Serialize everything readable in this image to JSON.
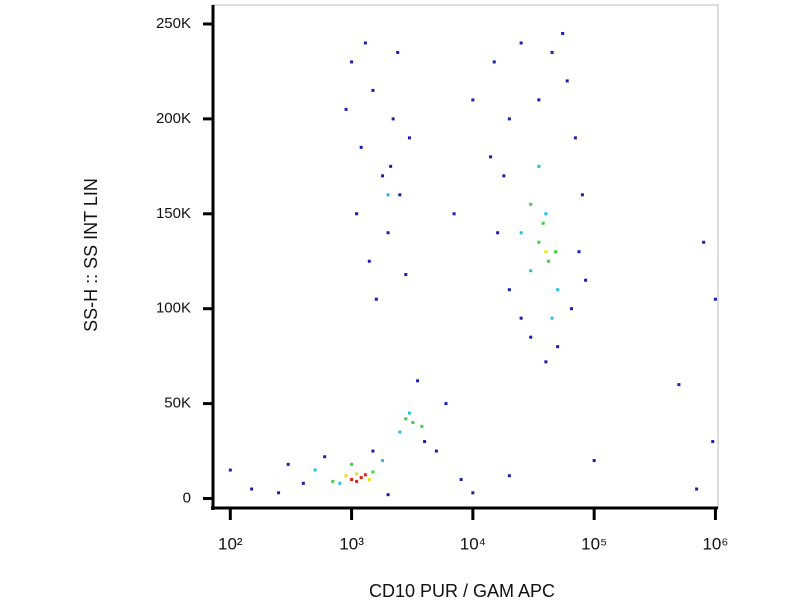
{
  "chart_data": {
    "type": "scatter",
    "x_label": "CD10 PUR / GAM APC",
    "y_label": "SS-H :: SS INT LIN",
    "xscale": "log",
    "xlim": [
      72,
      1050000
    ],
    "ylim": [
      -5000,
      260000
    ],
    "xticks": [
      {
        "value": 100,
        "label": "10²"
      },
      {
        "value": 1000,
        "label": "10³"
      },
      {
        "value": 10000,
        "label": "10⁴"
      },
      {
        "value": 100000,
        "label": "10⁵"
      },
      {
        "value": 1000000,
        "label": "10⁶"
      }
    ],
    "yticks": [
      0,
      {
        "value": 50000,
        "label": "50K"
      },
      {
        "value": 100000,
        "label": "100K"
      },
      {
        "value": 150000,
        "label": "150K"
      },
      {
        "value": 200000,
        "label": "200K"
      },
      {
        "value": 250000,
        "label": "250K"
      }
    ],
    "series": [
      {
        "color": "#1c1cb0",
        "x": [
          1000,
          1500,
          2200,
          1200,
          1800,
          2500,
          1100,
          2000,
          1400,
          2800,
          900,
          2400,
          1600,
          3000,
          1300,
          2100,
          15000,
          25000,
          45000,
          60000,
          20000,
          70000,
          18000,
          80000,
          16000,
          75000,
          20000,
          65000,
          30000,
          50000,
          40000,
          25000,
          85000,
          14000,
          55000,
          35000,
          100,
          150,
          250,
          300,
          400,
          2000,
          5000,
          6000,
          3500,
          8000,
          10000,
          20000,
          4000,
          1500,
          600,
          800000,
          1000000,
          500000,
          950000,
          700000,
          100000,
          7000,
          10000
        ],
        "values": [
          230000,
          215000,
          200000,
          185000,
          170000,
          160000,
          150000,
          140000,
          125000,
          118000,
          205000,
          235000,
          105000,
          190000,
          240000,
          175000,
          230000,
          240000,
          235000,
          220000,
          200000,
          190000,
          170000,
          160000,
          140000,
          130000,
          110000,
          100000,
          85000,
          80000,
          72000,
          95000,
          115000,
          180000,
          245000,
          210000,
          15000,
          5000,
          3000,
          18000,
          8000,
          2000,
          25000,
          50000,
          62000,
          10000,
          3000,
          12000,
          30000,
          25000,
          22000,
          135000,
          105000,
          60000,
          30000,
          5000,
          20000,
          150000,
          210000
        ]
      },
      {
        "color": "#22c0e0",
        "x": [
          40000,
          30000,
          50000,
          35000,
          2000,
          3000,
          2500,
          800,
          500,
          25000,
          45000,
          1800
        ],
        "values": [
          150000,
          120000,
          110000,
          175000,
          160000,
          45000,
          35000,
          8000,
          15000,
          140000,
          95000,
          20000
        ]
      },
      {
        "color": "#40d040",
        "x": [
          35000,
          42000,
          38000,
          30000,
          48000,
          3200,
          3800,
          2800,
          1500,
          1000,
          700
        ],
        "values": [
          135000,
          125000,
          145000,
          155000,
          130000,
          40000,
          38000,
          42000,
          14000,
          18000,
          9000
        ]
      },
      {
        "color": "#e8e020",
        "x": [
          1100,
          1400,
          900,
          40000
        ],
        "values": [
          13000,
          10000,
          12000,
          130000
        ]
      },
      {
        "color": "#e02010",
        "x": [
          1200,
          1000,
          1300,
          1100
        ],
        "values": [
          11000,
          10000,
          12500,
          9000
        ]
      }
    ]
  }
}
